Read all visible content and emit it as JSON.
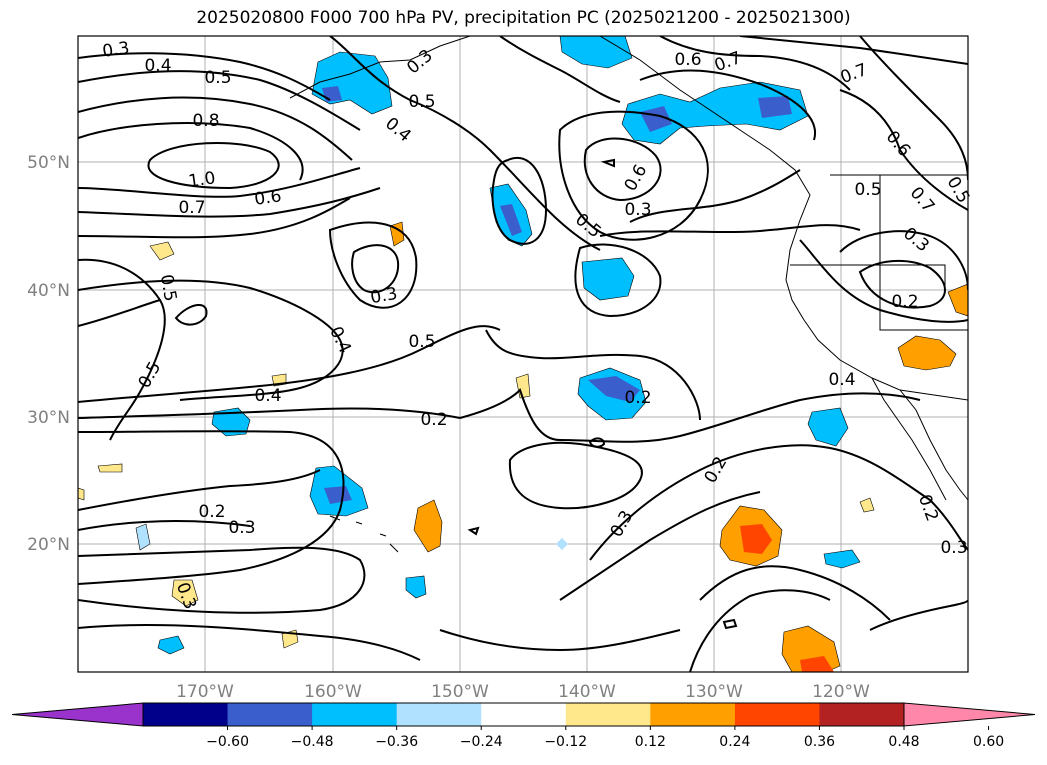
{
  "title": "2025020800 F000 700 hPa PV, precipitation PC (2025021200 - 2025021300)",
  "lat_labels": [
    "50°N",
    "40°N",
    "30°N",
    "20°N"
  ],
  "lon_labels": [
    "170°W",
    "160°W",
    "150°W",
    "140°W",
    "130°W",
    "120°W"
  ],
  "contour_labels": [
    "0.3",
    "0.4",
    "0.5",
    "0.8",
    "1.0",
    "0.7",
    "0.6",
    "0.3",
    "0.4",
    "0.5",
    "0.6",
    "0.7",
    "0.7",
    "0.6",
    "0.3",
    "0.5",
    "0.5",
    "0.6",
    "0.7",
    "0.3",
    "0.2",
    "0.3",
    "0.5",
    "0.4",
    "0.5",
    "0.4",
    "0.2",
    "0.4",
    "0.5",
    "0.5",
    "0.3",
    "0.2",
    "0.2",
    "0.3",
    "0.3",
    "0.2",
    "0.3",
    "0.2"
  ],
  "colorbar": {
    "ticks": [
      "−0.60",
      "−0.48",
      "−0.36",
      "−0.24",
      "−0.12",
      "0.12",
      "0.24",
      "0.36",
      "0.48",
      "0.60"
    ],
    "colors": [
      "#9933cc",
      "#00008b",
      "#3a5fcd",
      "#00bfff",
      "#b0e2ff",
      "#ffffff",
      "#ffe88c",
      "#ffa000",
      "#ff4500",
      "#b22222",
      "#ff88aa"
    ]
  },
  "colors": {
    "neg_dark": "#3a5fcd",
    "neg_mid": "#00bfff",
    "neg_light": "#b0e2ff",
    "pos_light": "#ffe88c",
    "pos_mid": "#ffa000",
    "pos_dark": "#ff4500"
  }
}
